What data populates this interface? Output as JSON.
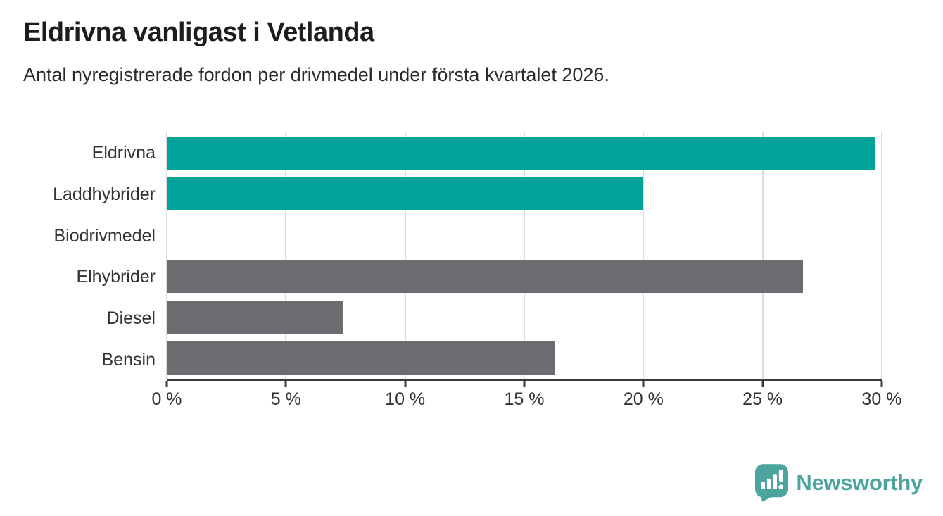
{
  "header": {
    "title": "Eldrivna vanligast i Vetlanda",
    "subtitle": "Antal nyregistrerade fordon per drivmedel under första kvartalet 2026."
  },
  "chart_data": {
    "type": "bar",
    "orientation": "horizontal",
    "title": "Eldrivna vanligast i Vetlanda",
    "subtitle": "Antal nyregistrerade fordon per drivmedel under första kvartalet 2026.",
    "categories": [
      "Eldrivna",
      "Laddhybrider",
      "Biodrivmedel",
      "Elhybrider",
      "Diesel",
      "Bensin"
    ],
    "values": [
      29.7,
      20.0,
      0,
      26.7,
      7.4,
      16.3
    ],
    "bar_colors": [
      "#00a39a",
      "#00a39a",
      "#6d6d71",
      "#6d6d71",
      "#6d6d71",
      "#6d6d71"
    ],
    "xlabel": "",
    "ylabel": "",
    "xlim": [
      0,
      30
    ],
    "xticks": [
      0,
      5,
      10,
      15,
      20,
      25,
      30
    ],
    "xtick_labels": [
      "0 %",
      "5 %",
      "10 %",
      "15 %",
      "20 %",
      "25 %",
      "30 %"
    ],
    "grid": "vertical",
    "legend": "none"
  },
  "branding": {
    "logo_text": "Newsworthy",
    "logo_icon": "bar-chart-speech-bubble-icon",
    "logo_color": "#4ba49d"
  },
  "colors": {
    "highlight_teal": "#00a39a",
    "neutral_gray": "#6d6d71",
    "gridline": "#dcdcdc",
    "axis": "#3a3a3a",
    "title_text": "#1d1d1d",
    "body_text": "#333333"
  }
}
